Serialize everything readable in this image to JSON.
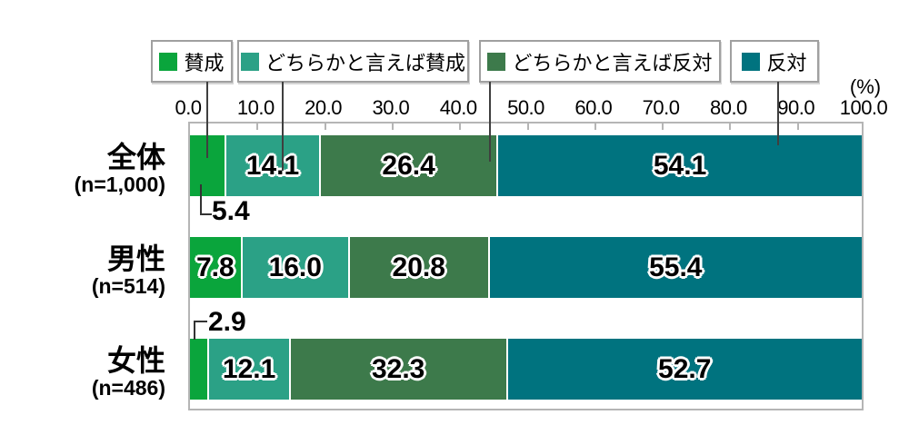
{
  "unit_label": "(%)",
  "chart_data": {
    "type": "bar",
    "stacked": true,
    "orientation": "horizontal",
    "title": "",
    "xlabel": "(%)",
    "xlim": [
      0,
      100
    ],
    "grid": false,
    "legend_position": "top",
    "axis_ticks": [
      "0.0",
      "10.0",
      "20.0",
      "30.0",
      "40.0",
      "50.0",
      "60.0",
      "70.0",
      "80.0",
      "90.0",
      "100.0"
    ],
    "legend": [
      {
        "label": "賛成",
        "color": "#0aa53c"
      },
      {
        "label": "どちらかと言えば賛成",
        "color": "#2ba186"
      },
      {
        "label": "どちらかと言えば反対",
        "color": "#3d7a4b"
      },
      {
        "label": "反対",
        "color": "#00737f"
      }
    ],
    "categories": [
      {
        "label": "全体",
        "n_label": "(n=1,000)",
        "values": [
          5.4,
          14.1,
          26.4,
          54.1
        ],
        "value_labels": [
          "5.4",
          "14.1",
          "26.4",
          "54.1"
        ],
        "first_label_placement": "callout-below"
      },
      {
        "label": "男性",
        "n_label": "(n=514)",
        "values": [
          7.8,
          16.0,
          20.8,
          55.4
        ],
        "value_labels": [
          "7.8",
          "16.0",
          "20.8",
          "55.4"
        ],
        "first_label_placement": "inside"
      },
      {
        "label": "女性",
        "n_label": "(n=486)",
        "values": [
          2.9,
          12.1,
          32.3,
          52.7
        ],
        "value_labels": [
          "2.9",
          "12.1",
          "32.3",
          "52.7"
        ],
        "first_label_placement": "callout-above"
      }
    ]
  },
  "colors": {
    "plot_border": "#b5b5b5",
    "legend_border": "#a0a0a0",
    "leader_line": "#3f3f3f",
    "callout_line": "#333333"
  }
}
